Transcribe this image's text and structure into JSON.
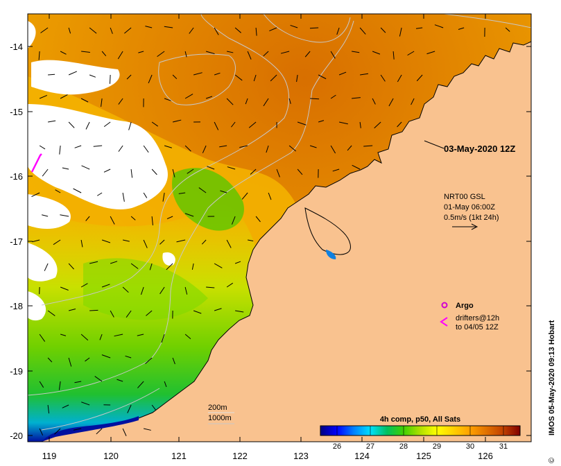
{
  "map": {
    "date_label": "03-May-2020 12Z",
    "current_info": {
      "line1": "NRT00 GSL",
      "line2": "01-May 06:00Z",
      "line3": "0.5m/s (1kt 24h)"
    },
    "argo_label": "Argo",
    "drifters": {
      "line1": "drifters@12h",
      "line2": "to 04/05 12Z"
    },
    "contours": {
      "depth1": "200m",
      "depth2": "1000m"
    },
    "credit": "IMOS 05-May-2020 09:13 Hobart",
    "credit_symbol": "©",
    "lon_ticks": [
      "119",
      "120",
      "121",
      "122",
      "123",
      "124",
      "125",
      "126"
    ],
    "lat_ticks": [
      "-14",
      "-15",
      "-16",
      "-17",
      "-18",
      "-19",
      "-20"
    ]
  },
  "colorbar": {
    "title": "4h comp, p50, All Sats",
    "ticks": [
      "26",
      "27",
      "28",
      "29",
      "30",
      "31"
    ],
    "range": [
      25.5,
      31.5
    ],
    "colors": [
      "#000080",
      "#0000ff",
      "#0080ff",
      "#00e0ff",
      "#00c060",
      "#40d000",
      "#b0e000",
      "#ffff00",
      "#ffd000",
      "#ffa000",
      "#e07000",
      "#c04000",
      "#800000"
    ]
  },
  "colors": {
    "land": "#f9c28f",
    "cloud": "#ffffff",
    "argo": "#d000d0",
    "drifter": "#ff00ff"
  }
}
